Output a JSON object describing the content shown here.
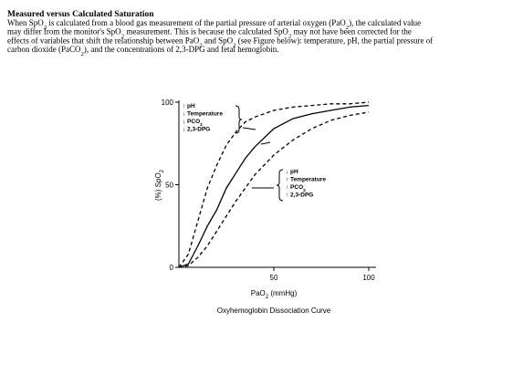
{
  "document": {
    "title": "Measured versus Calculated Saturation",
    "lines": [
      [
        "When SpO",
        "2",
        " is calculated from a blood gas measurement of the partial pressure of arterial oxygen (PaO",
        "2",
        "), the calculated value"
      ],
      [
        "may differ from the monitor's SpO",
        "2",
        " measurement. This is because the calculated SpO",
        "2",
        " may not have been corrected for the"
      ],
      [
        "effects of variables that shift the relationship between PaO",
        "2",
        " and SpO",
        "2",
        " (see Figure below): temperature, pH, the partial pressure of"
      ],
      [
        "carbon dioxide (PaCO",
        "2",
        "), and the concentrations of 2,3-DPG and fetal hemoglobin."
      ]
    ]
  },
  "chart_data": {
    "type": "line",
    "title": "Oxyhemoglobin Dissociation Curve",
    "xlabel": [
      "PaO",
      "2",
      " (mmHg)"
    ],
    "ylabel": [
      "(%) SpO",
      "2"
    ],
    "x": [
      0,
      5,
      10,
      15,
      20,
      25,
      30,
      35,
      40,
      50,
      60,
      70,
      80,
      90,
      100
    ],
    "series": [
      {
        "color": "#000000",
        "dashed": false,
        "values": [
          0,
          2,
          13,
          25,
          35,
          48,
          57,
          66,
          73,
          84,
          90,
          93,
          95,
          97,
          98
        ]
      },
      {
        "color": "#000000",
        "dashed": true,
        "values": [
          0,
          8,
          28,
          48,
          62,
          74,
          82,
          88,
          91,
          95,
          97,
          98,
          99,
          99,
          100
        ]
      },
      {
        "color": "#000000",
        "dashed": true,
        "values": [
          0,
          1,
          6,
          13,
          22,
          31,
          40,
          48,
          56,
          68,
          77,
          84,
          89,
          92,
          94
        ]
      }
    ],
    "xlim": [
      0,
      105
    ],
    "ylim": [
      0,
      100
    ],
    "xticks": [
      50,
      100
    ],
    "yticks": [
      0,
      50,
      100
    ],
    "annotations": [
      {
        "lines": [
          [
            "↑ pH"
          ],
          [
            "↓ Temperature"
          ],
          [
            "↓ PCO",
            "2"
          ],
          [
            "↓ 2,3-DPG"
          ]
        ]
      },
      {
        "lines": [
          [
            "↓ pH"
          ],
          [
            "↑ Temperature"
          ],
          [
            "↑ PCO",
            "2"
          ],
          [
            "↑ 2,3-DPG"
          ]
        ]
      }
    ]
  }
}
